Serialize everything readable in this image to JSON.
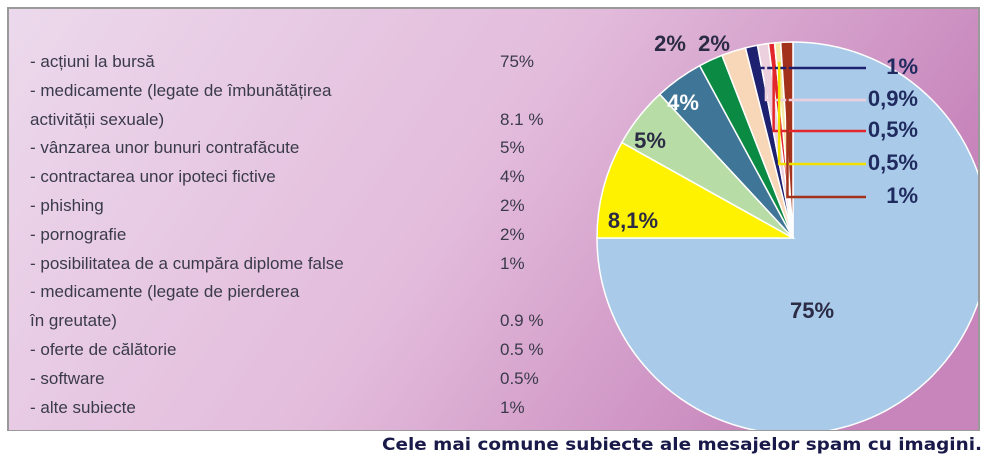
{
  "chart_data": {
    "type": "pie",
    "caption": "Cele mai comune subiecte ale mesajelor spam cu imagini.",
    "categories": [
      "- acțiuni la bursă",
      "- medicamente (legate de îmbunătățirea\nactivității sexuale)",
      "- vânzarea unor bunuri contrafăcute",
      "- contractarea unor ipoteci fictive",
      "- phishing",
      "- pornografie",
      "- posibilitatea de a cumpăra diplome false",
      "- medicamente (legate de pierderea\nîn greutate)",
      "- oferte de călătorie",
      "- software",
      "- alte subiecte"
    ],
    "values": [
      75,
      8.1,
      5,
      4,
      2,
      2,
      1,
      0.9,
      0.5,
      0.5,
      1
    ],
    "value_labels": [
      "75%",
      "8.1 %",
      "5%",
      "4%",
      "2%",
      "2%",
      "1%",
      "0.9 %",
      "0.5 %",
      "0.5%",
      "1%"
    ],
    "pie_labels": [
      "75%",
      "8,1%",
      "5%",
      "4%",
      "2%",
      "2%",
      "1%",
      "0,9%",
      "0,5%",
      "0,5%",
      "1%"
    ],
    "colors": [
      "#a9cbe9",
      "#fff200",
      "#b8dca6",
      "#3f7596",
      "#0b8a43",
      "#f8d7b8",
      "#1e2170",
      "#ecd0dd",
      "#e2262b",
      "#f5e7a8",
      "#a2321b"
    ]
  }
}
